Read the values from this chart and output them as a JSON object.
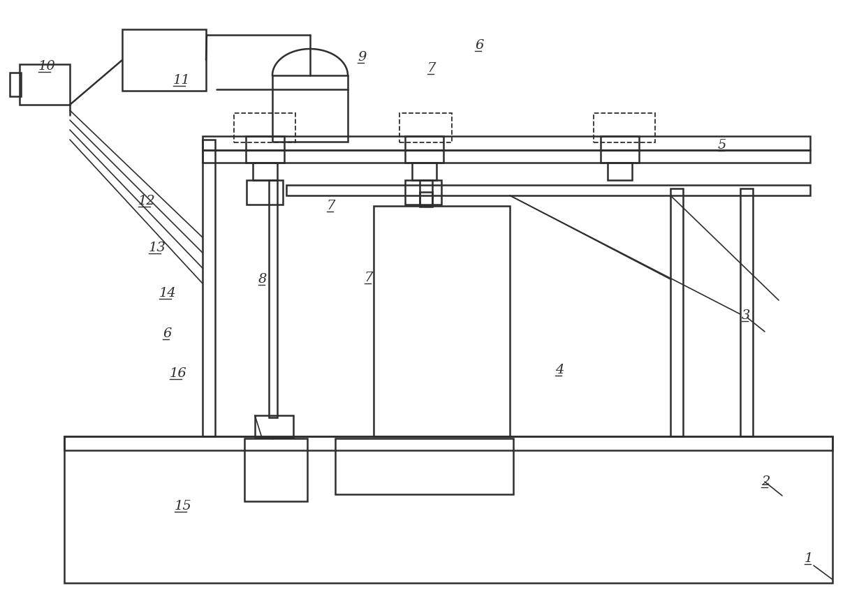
{
  "bg": "#ffffff",
  "lc": "#2d2d2d",
  "lw": 1.8,
  "tlw": 1.2,
  "fig_w": 12.4,
  "fig_h": 8.68,
  "dpi": 100
}
